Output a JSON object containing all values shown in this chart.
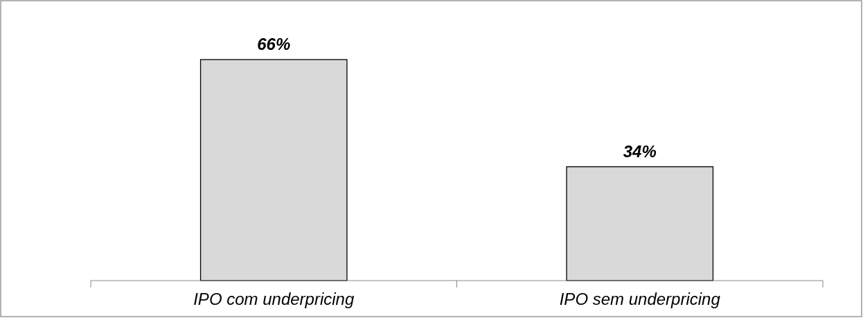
{
  "chart_data": {
    "type": "bar",
    "categories": [
      "IPO com underpricing",
      "IPO sem underpricing"
    ],
    "values": [
      66,
      34
    ],
    "value_labels": [
      "66%",
      "34%"
    ],
    "color": "#d9d9d9"
  }
}
